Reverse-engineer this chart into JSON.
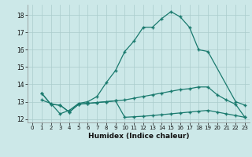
{
  "xlabel": "Humidex (Indice chaleur)",
  "background_color": "#cce8e8",
  "line_color": "#1a7a6e",
  "grid_color": "#aacccc",
  "xlim": [
    -0.5,
    23.5
  ],
  "ylim": [
    11.8,
    18.6
  ],
  "yticks": [
    12,
    13,
    14,
    15,
    16,
    17,
    18
  ],
  "xticks": [
    0,
    1,
    2,
    3,
    4,
    5,
    6,
    7,
    8,
    9,
    10,
    11,
    12,
    13,
    14,
    15,
    16,
    17,
    18,
    19,
    20,
    21,
    22,
    23
  ],
  "line1_x": [
    1,
    2,
    3,
    4,
    5,
    6,
    7,
    8,
    9,
    10,
    11,
    12,
    13,
    14,
    15,
    16,
    17,
    18,
    19,
    22,
    23
  ],
  "line1_y": [
    13.1,
    12.9,
    12.3,
    12.5,
    12.9,
    13.0,
    13.3,
    14.1,
    14.8,
    15.9,
    16.5,
    17.3,
    17.3,
    17.8,
    18.2,
    17.9,
    17.3,
    16.0,
    15.9,
    13.0,
    12.8
  ],
  "line2_x": [
    1,
    2,
    3,
    4,
    5,
    6,
    7,
    8,
    9,
    10,
    11,
    12,
    13,
    14,
    15,
    16,
    17,
    18,
    19,
    20,
    21,
    22,
    23
  ],
  "line2_y": [
    13.5,
    12.85,
    12.8,
    12.4,
    12.85,
    12.9,
    12.95,
    13.0,
    13.05,
    13.1,
    13.2,
    13.3,
    13.4,
    13.5,
    13.6,
    13.7,
    13.75,
    13.85,
    13.85,
    13.4,
    13.1,
    12.85,
    12.1
  ],
  "line3_x": [
    1,
    2,
    3,
    4,
    5,
    6,
    7,
    8,
    9,
    10,
    11,
    12,
    13,
    14,
    15,
    16,
    17,
    18,
    19,
    20,
    21,
    22,
    23
  ],
  "line3_y": [
    13.5,
    12.85,
    12.8,
    12.4,
    12.85,
    12.9,
    12.95,
    13.0,
    13.05,
    12.1,
    12.13,
    12.16,
    12.2,
    12.25,
    12.3,
    12.35,
    12.4,
    12.45,
    12.5,
    12.4,
    12.3,
    12.2,
    12.1
  ]
}
